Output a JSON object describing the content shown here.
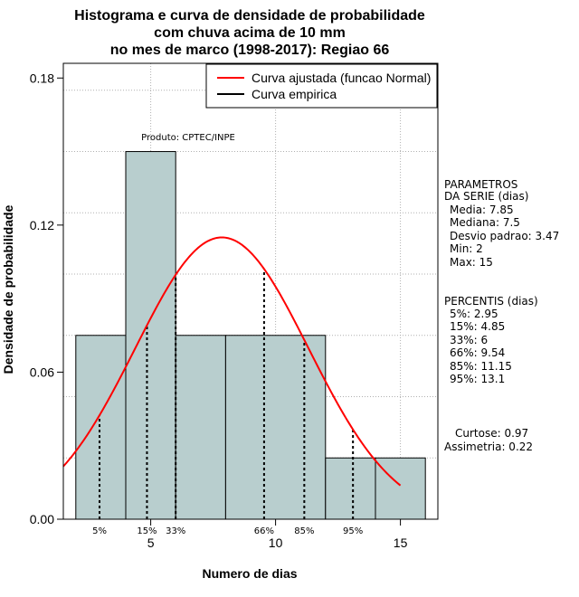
{
  "chart_data": {
    "type": "bar",
    "title": [
      "Histograma e curva de densidade de probabilidade",
      "com chuva acima de 10 mm",
      "no mes de marco (1998-2017): Regiao 66"
    ],
    "xlabel": "Numero de dias",
    "ylabel": "Densidade de probabilidade",
    "xlim": [
      1.5,
      16.5
    ],
    "ylim": [
      0,
      0.186
    ],
    "x_ticks": [
      5,
      10,
      15
    ],
    "y_ticks": [
      0.0,
      0.06,
      0.12,
      0.18
    ],
    "y_tick_labels": [
      "0.00",
      "0.06",
      "0.12",
      "0.18"
    ],
    "grid": true,
    "grid_x": [
      5,
      10,
      15
    ],
    "grid_y": [
      0.025,
      0.05,
      0.075,
      0.1,
      0.125,
      0.15,
      0.175
    ],
    "legend_position": "top-right",
    "bins": [
      {
        "x0": 2,
        "x1": 4,
        "density": 0.075
      },
      {
        "x0": 4,
        "x1": 6,
        "density": 0.15
      },
      {
        "x0": 6,
        "x1": 8,
        "density": 0.075
      },
      {
        "x0": 8,
        "x1": 12,
        "density": 0.075
      },
      {
        "x0": 12,
        "x1": 14,
        "density": 0.025
      },
      {
        "x0": 14,
        "x1": 16,
        "density": 0.025
      }
    ],
    "bar_color": "#b8cece",
    "normal_curve": {
      "mean": 7.85,
      "sd": 3.47,
      "x_from": 1.5,
      "x_to": 15.0,
      "color": "#ff0000"
    },
    "series": [
      {
        "name": "Curva ajustada (funcao Normal)",
        "color": "#ff0000"
      },
      {
        "name": "Curva empirica",
        "color": "#000000"
      }
    ],
    "percentile_lines": [
      {
        "label": "5%",
        "x": 2.95
      },
      {
        "label": "15%",
        "x": 4.85
      },
      {
        "label": "33%",
        "x": 6
      },
      {
        "label": "66%",
        "x": 9.54
      },
      {
        "label": "85%",
        "x": 11.15
      },
      {
        "label": "95%",
        "x": 13.1
      }
    ],
    "credit": "Produto: CPTEC/INPE",
    "parameters": {
      "heading": [
        "PARAMETROS",
        "DA SERIE (dias)"
      ],
      "lines": [
        "Media: 7.85",
        "Mediana: 7.5",
        "Desvio padrao: 3.47",
        "Min: 2",
        "Max: 15"
      ]
    },
    "percentiles_block": {
      "heading": "PERCENTIS (dias)",
      "lines": [
        "5%: 2.95",
        "15%: 4.85",
        "33%: 6",
        "66%: 9.54",
        "85%: 11.15",
        "95%: 13.1"
      ]
    },
    "shape_stats": [
      "Curtose: 0.97",
      "Assimetria: 0.22"
    ]
  }
}
